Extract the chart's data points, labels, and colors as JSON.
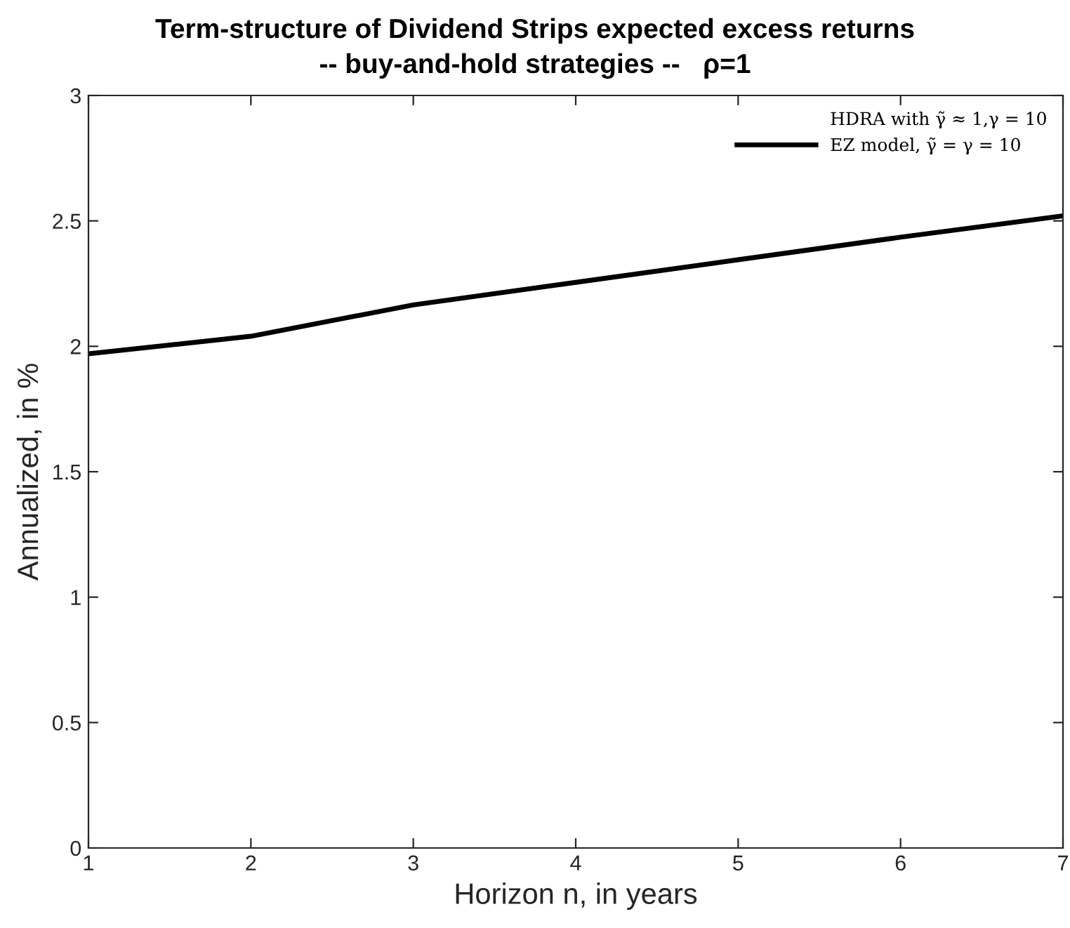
{
  "chart_data": {
    "type": "line",
    "title": "Term-structure of Dividend Strips expected excess returns",
    "subtitle": "-- buy-and-hold strategies --   ρ=1",
    "xlabel": "Horizon n, in years",
    "ylabel": "Annualized, in %",
    "x": [
      1,
      2,
      3,
      4,
      5,
      6,
      7
    ],
    "series": [
      {
        "name": "HDRA with γ̃ ≈ 1,γ = 10",
        "values": [
          null,
          null,
          null,
          null,
          null,
          null,
          null
        ]
      },
      {
        "name": "EZ model, γ̃ = γ = 10",
        "color": "#000000",
        "values": [
          1.97,
          2.04,
          2.165,
          2.255,
          2.345,
          2.435,
          2.52
        ]
      }
    ],
    "xlim": [
      1,
      7
    ],
    "xticks": [
      1,
      2,
      3,
      4,
      5,
      6,
      7
    ],
    "ylim": [
      0,
      3
    ],
    "yticks": [
      0,
      0.5,
      1,
      1.5,
      2,
      2.5,
      3
    ],
    "grid": false,
    "legend": "top right",
    "line_style": "solid",
    "marker": "none"
  }
}
